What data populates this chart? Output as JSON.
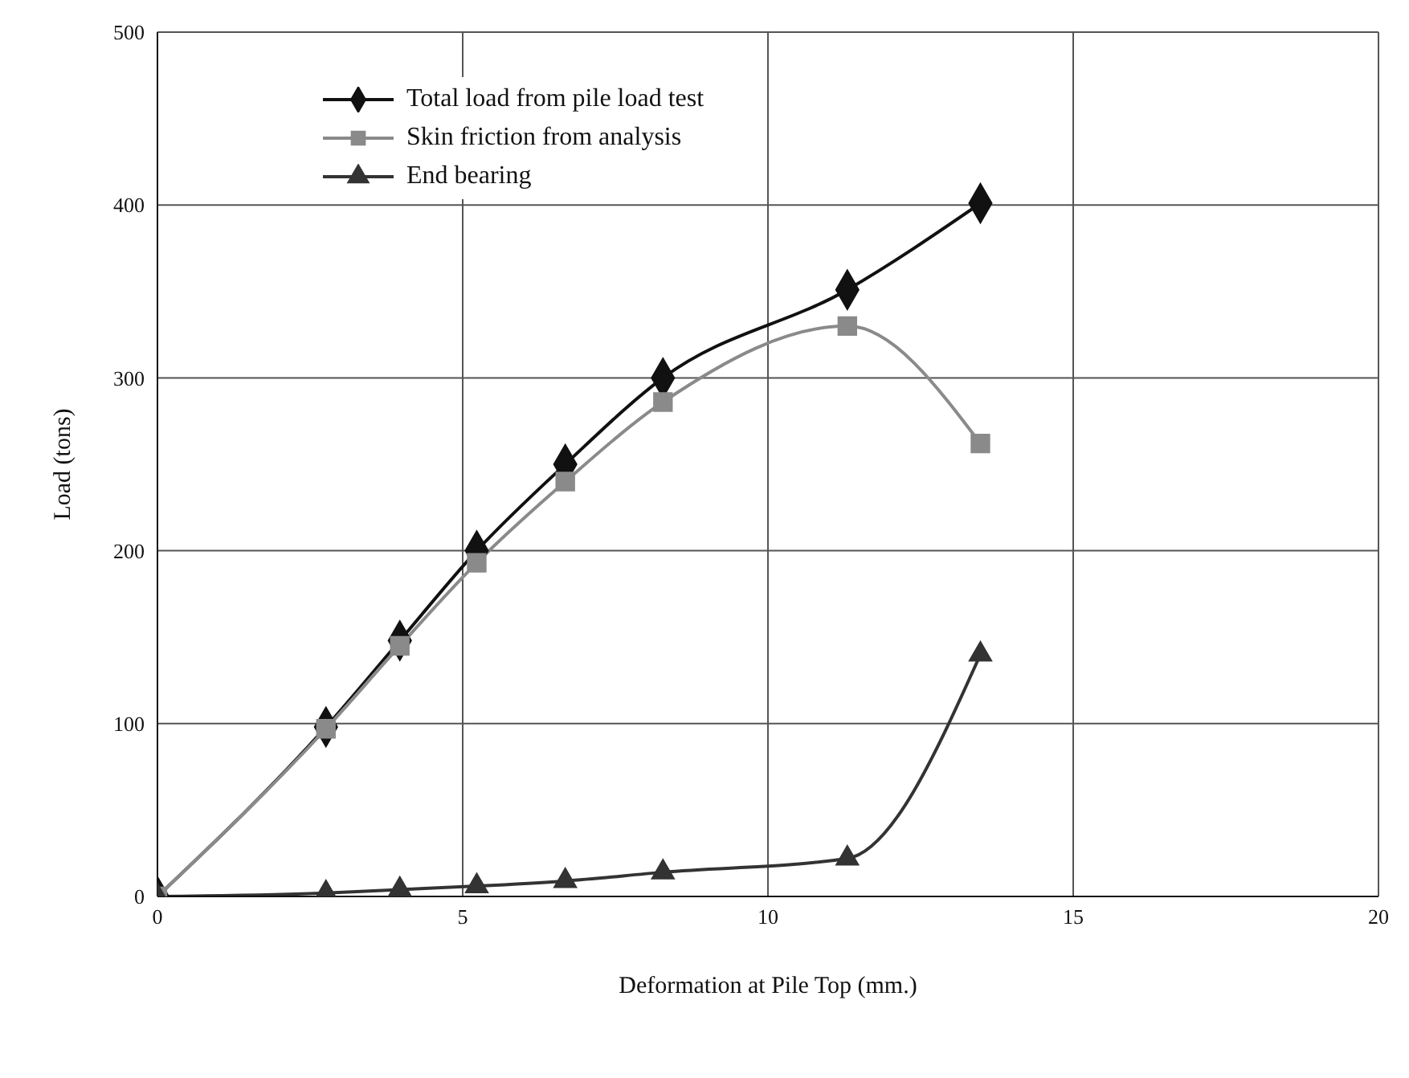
{
  "chart_data": {
    "type": "line",
    "xlabel": "Deformation at Pile Top (mm.)",
    "ylabel": "Load (tons)",
    "xlim": [
      0,
      20
    ],
    "xticks": [
      0,
      5,
      10,
      15,
      20
    ],
    "ylim": [
      0,
      500
    ],
    "yticks": [
      0,
      100,
      200,
      300,
      400,
      500
    ],
    "grid": true,
    "legend": "top left",
    "line_style": "solid",
    "x": [
      0,
      2.76,
      3.97,
      5.23,
      6.68,
      8.28,
      11.3,
      13.48
    ],
    "series": [
      {
        "name": "Total load from pile load test",
        "color": "#111111",
        "marker": "diamond",
        "values": [
          0,
          98,
          148,
          200,
          250,
          300,
          351,
          401
        ]
      },
      {
        "name": "Skin friction from analysis",
        "color": "#8a8a8a",
        "marker": "square",
        "values": [
          0,
          97,
          145,
          193,
          240,
          286,
          330,
          262
        ]
      },
      {
        "name": "End bearing",
        "color": "#333333",
        "marker": "triangle",
        "values": [
          0,
          2,
          4,
          6,
          9,
          14,
          22,
          140
        ]
      }
    ]
  }
}
